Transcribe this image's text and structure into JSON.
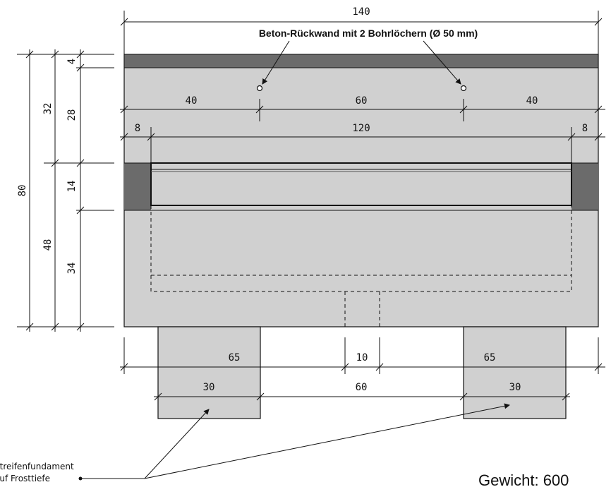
{
  "callout": {
    "text": "Beton-Rückwand mit 2 Bohrlöchern (Ø 50 mm)"
  },
  "dimensions": {
    "total_width": "140",
    "hole_left": "40",
    "hole_mid": "60",
    "hole_right": "40",
    "edge_left": "8",
    "inner_width": "120",
    "edge_right": "8",
    "height_total": "80",
    "height_upper": "32",
    "height_lower": "48",
    "top_strip": "4",
    "back_wall": "28",
    "slot": "14",
    "base": "34",
    "foot_left_outer": "65",
    "foot_gap": "10",
    "foot_right_outer": "65",
    "foot_left_width": "30",
    "foot_spacing": "60",
    "foot_right_width": "30"
  },
  "foundation_note": {
    "line1": "Streifenfundament",
    "line2": "auf Frosttiefe"
  },
  "weight": {
    "text": "Gewicht: 600"
  },
  "colors": {
    "concrete": "#d0d0d0",
    "dark_concrete": "#6b6b6b",
    "line": "#111111"
  }
}
